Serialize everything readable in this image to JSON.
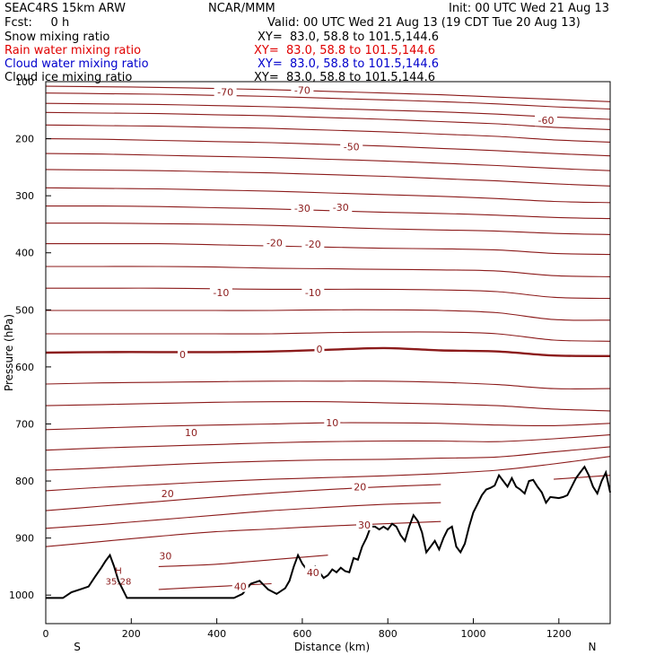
{
  "header": {
    "model": "SEAC4RS 15km ARW",
    "org": "NCAR/MMM",
    "init": "Init: 00 UTC Wed 21 Aug 13",
    "fcst": "Fcst:     0 h",
    "valid": "Valid: 00 UTC Wed 21 Aug 13 (19 CDT Tue 20 Aug 13)",
    "fields": [
      {
        "name": "Snow mixing ratio",
        "xy": "XY=  83.0, 58.8 to 101.5,144.6",
        "color": "#000000"
      },
      {
        "name": "Rain water mixing ratio",
        "xy": "XY=  83.0, 58.8 to 101.5,144.6",
        "color": "#e00000"
      },
      {
        "name": "Cloud water mixing ratio",
        "xy": "XY=  83.0, 58.8 to 101.5,144.6",
        "color": "#0000cc"
      },
      {
        "name": "Cloud ice mixing ratio",
        "xy": "XY=  83.0, 58.8 to 101.5,144.6",
        "color": "#000000"
      }
    ]
  },
  "chart_data": {
    "type": "line",
    "xlabel": "Distance (km)",
    "ylabel": "Pressure (hPa)",
    "xlim": [
      0,
      1320
    ],
    "ylim": [
      1050,
      100
    ],
    "xticks": [
      0,
      200,
      400,
      600,
      800,
      1000,
      1200
    ],
    "yticks": [
      200,
      300,
      400,
      500,
      600,
      700,
      800,
      900,
      1000
    ],
    "yticklabel_top": "100",
    "endpoints": {
      "left": "S",
      "right": "N"
    },
    "contour_color": "#8b1a1a",
    "terrain_color": "#000000",
    "isotherms": [
      {
        "temp": 36,
        "p": [
          982,
          985,
          990,
          985,
          980,
          978,
          976,
          976,
          978,
          982,
          985
        ]
      },
      {
        "temp": 33,
        "p": [
          955,
          952,
          950,
          946,
          938,
          930,
          922,
          920,
          922,
          926,
          930
        ]
      },
      {
        "temp": 30,
        "p": [
          915,
          906,
          897,
          889,
          884,
          879,
          875,
          871,
          867,
          863,
          858
        ]
      },
      {
        "temp": 27,
        "p": [
          883,
          876,
          868,
          860,
          852,
          846,
          841,
          838,
          834,
          827,
          820
        ]
      },
      {
        "temp": 24,
        "p": [
          852,
          844,
          836,
          828,
          821,
          815,
          810,
          806,
          802,
          797,
          790
        ]
      },
      {
        "temp": 20,
        "p": [
          817,
          811,
          806,
          801,
          797,
          794,
          791,
          787,
          781,
          770,
          757
        ]
      },
      {
        "temp": 17,
        "p": [
          781,
          777,
          772,
          768,
          765,
          763,
          762,
          760,
          758,
          749,
          740
        ]
      },
      {
        "temp": 13,
        "p": [
          746,
          742,
          739,
          736,
          733,
          731,
          730,
          730,
          731,
          726,
          719
        ]
      },
      {
        "temp": 10,
        "p": [
          710,
          707,
          704,
          702,
          700,
          698,
          698,
          699,
          702,
          703,
          699
        ]
      },
      {
        "temp": 7,
        "p": [
          668,
          666,
          664,
          662,
          661,
          661,
          663,
          665,
          668,
          674,
          677
        ]
      },
      {
        "temp": 3,
        "p": [
          630,
          628,
          627,
          626,
          625,
          625,
          625,
          627,
          631,
          638,
          638
        ]
      },
      {
        "temp": 0,
        "p": [
          575,
          574,
          574,
          574,
          573,
          570,
          567,
          571,
          573,
          580,
          581
        ]
      },
      {
        "temp": -3,
        "p": [
          542,
          542,
          542,
          542,
          542,
          540,
          539,
          539,
          542,
          553,
          555
        ]
      },
      {
        "temp": -7,
        "p": [
          501,
          501,
          501,
          501,
          501,
          500,
          500,
          501,
          505,
          517,
          518
        ]
      },
      {
        "temp": -10,
        "p": [
          462,
          462,
          462,
          463,
          464,
          464,
          464,
          465,
          468,
          478,
          480
        ]
      },
      {
        "temp": -13,
        "p": [
          424,
          424,
          424,
          425,
          427,
          428,
          429,
          430,
          432,
          440,
          442
        ]
      },
      {
        "temp": -17,
        "p": [
          384,
          384,
          384,
          386,
          388,
          390,
          392,
          393,
          395,
          401,
          403
        ]
      },
      {
        "temp": -20,
        "p": [
          348,
          348,
          349,
          350,
          352,
          355,
          358,
          360,
          362,
          366,
          368
        ]
      },
      {
        "temp": -23,
        "p": [
          318,
          318,
          319,
          321,
          323,
          326,
          329,
          331,
          334,
          338,
          340
        ]
      },
      {
        "temp": -27,
        "p": [
          286,
          287,
          288,
          290,
          292,
          295,
          298,
          301,
          305,
          310,
          312
        ]
      },
      {
        "temp": -30,
        "p": [
          254,
          255,
          256,
          258,
          260,
          263,
          266,
          270,
          274,
          279,
          283
        ]
      },
      {
        "temp": -33,
        "p": [
          226,
          227,
          229,
          231,
          233,
          236,
          239,
          243,
          247,
          252,
          256
        ]
      },
      {
        "temp": -37,
        "p": [
          200,
          201,
          203,
          205,
          207,
          210,
          213,
          217,
          221,
          226,
          230
        ]
      },
      {
        "temp": -40,
        "p": [
          176,
          177,
          178,
          180,
          182,
          185,
          188,
          192,
          196,
          202,
          206
        ]
      },
      {
        "temp": -43,
        "p": [
          154,
          155,
          156,
          158,
          160,
          163,
          166,
          170,
          174,
          180,
          184
        ]
      },
      {
        "temp": -47,
        "p": [
          138,
          139,
          140,
          142,
          144,
          147,
          150,
          153,
          157,
          162,
          166
        ]
      },
      {
        "temp": -50,
        "p": [
          120,
          121,
          122,
          124,
          126,
          129,
          132,
          135,
          139,
          144,
          148
        ]
      },
      {
        "temp": -53,
        "p": [
          108,
          109,
          110,
          112,
          114,
          117,
          120,
          123,
          127,
          131,
          135
        ]
      }
    ],
    "contour_x": [
      0,
      132,
      264,
      396,
      528,
      660,
      792,
      924,
      1056,
      1188,
      1320
    ],
    "contour_labels": [
      {
        "text": "-70",
        "x": 420,
        "p": 118
      },
      {
        "text": "-70",
        "x": 600,
        "p": 115
      },
      {
        "text": "-60",
        "x": 1170,
        "p": 168
      },
      {
        "text": "-50",
        "x": 715,
        "p": 214
      },
      {
        "text": "-30",
        "x": 600,
        "p": 322
      },
      {
        "text": "-30",
        "x": 690,
        "p": 320
      },
      {
        "text": "-20",
        "x": 535,
        "p": 382
      },
      {
        "text": "-20",
        "x": 625,
        "p": 385
      },
      {
        "text": "-10",
        "x": 410,
        "p": 470
      },
      {
        "text": "-10",
        "x": 625,
        "p": 470
      },
      {
        "text": "0",
        "x": 320,
        "p": 578
      },
      {
        "text": "0",
        "x": 640,
        "p": 569
      },
      {
        "text": "10",
        "x": 340,
        "p": 715
      },
      {
        "text": "10",
        "x": 670,
        "p": 698
      },
      {
        "text": "20",
        "x": 285,
        "p": 822
      },
      {
        "text": "20",
        "x": 735,
        "p": 810
      },
      {
        "text": "30",
        "x": 280,
        "p": 931
      },
      {
        "text": "30",
        "x": 745,
        "p": 877
      },
      {
        "text": "40",
        "x": 455,
        "p": 985
      },
      {
        "text": "40",
        "x": 625,
        "p": 960
      }
    ],
    "max_marker": {
      "letter": "H",
      "value": "35.28",
      "x": 170,
      "p": 985
    },
    "terrain": {
      "x": [
        0,
        20,
        40,
        60,
        80,
        100,
        115,
        130,
        140,
        150,
        160,
        170,
        180,
        190,
        200,
        220,
        240,
        260,
        280,
        300,
        320,
        340,
        360,
        380,
        400,
        420,
        440,
        460,
        480,
        500,
        520,
        540,
        560,
        570,
        580,
        590,
        600,
        610,
        620,
        630,
        640,
        650,
        660,
        670,
        680,
        690,
        700,
        710,
        720,
        730,
        740,
        750,
        760,
        770,
        780,
        790,
        800,
        810,
        820,
        830,
        840,
        850,
        860,
        870,
        880,
        890,
        900,
        910,
        920,
        930,
        940,
        950,
        960,
        970,
        980,
        990,
        1000,
        1010,
        1020,
        1030,
        1040,
        1050,
        1060,
        1070,
        1080,
        1090,
        1100,
        1110,
        1120,
        1130,
        1140,
        1150,
        1160,
        1170,
        1180,
        1190,
        1200,
        1210,
        1220,
        1230,
        1240,
        1250,
        1260,
        1270,
        1280,
        1290,
        1300,
        1310,
        1320
      ],
      "p": [
        1005,
        1005,
        1005,
        995,
        990,
        985,
        968,
        952,
        940,
        930,
        950,
        975,
        990,
        1005,
        1005,
        1005,
        1005,
        1005,
        1005,
        1005,
        1005,
        1005,
        1005,
        1005,
        1005,
        1005,
        1005,
        998,
        980,
        975,
        990,
        998,
        988,
        975,
        950,
        930,
        945,
        955,
        958,
        950,
        960,
        970,
        965,
        955,
        960,
        952,
        958,
        960,
        935,
        938,
        915,
        900,
        880,
        880,
        885,
        880,
        885,
        875,
        880,
        895,
        905,
        880,
        860,
        870,
        890,
        925,
        915,
        905,
        920,
        900,
        885,
        880,
        915,
        925,
        910,
        880,
        855,
        840,
        825,
        815,
        812,
        808,
        790,
        800,
        810,
        795,
        810,
        815,
        822,
        800,
        798,
        810,
        820,
        838,
        828,
        829,
        830,
        828,
        825,
        810,
        795,
        785,
        775,
        790,
        810,
        822,
        800,
        785,
        820
      ]
    }
  }
}
